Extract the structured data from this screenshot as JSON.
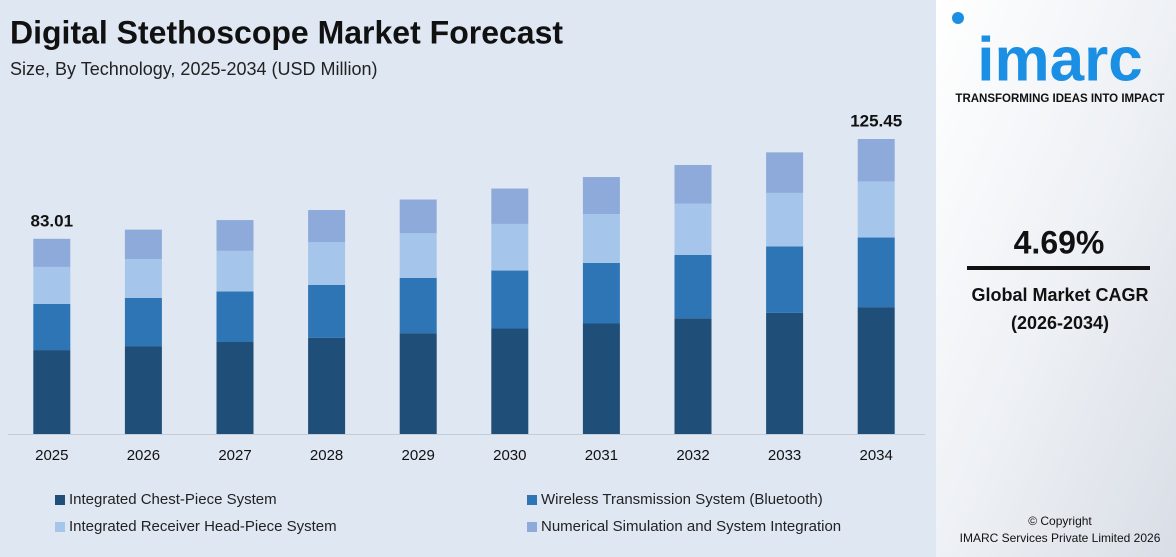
{
  "chart_data": {
    "type": "stacked-bar",
    "title": "Digital Stethoscope Market Forecast",
    "subtitle": "Size, By Technology, 2025-2034 (USD Million)",
    "categories": [
      "2025",
      "2026",
      "2027",
      "2028",
      "2029",
      "2030",
      "2031",
      "2032",
      "2033",
      "2034"
    ],
    "series": [
      {
        "name": "Integrated Chest-Piece System",
        "color": "#1f4e79",
        "values": [
          35.69,
          37.37,
          39.12,
          40.95,
          42.88,
          44.88,
          46.99,
          49.19,
          51.5,
          53.94
        ]
      },
      {
        "name": "Wireless Transmission System (Bluetooth)",
        "color": "#2e75b6",
        "values": [
          19.59,
          20.51,
          21.47,
          22.48,
          23.53,
          24.63,
          25.79,
          27.0,
          28.27,
          29.61
        ]
      },
      {
        "name": "Integrated Receiver Head-Piece System",
        "color": "#a5c6ea",
        "values": [
          15.77,
          16.51,
          17.29,
          18.1,
          18.94,
          19.83,
          20.76,
          21.74,
          22.76,
          23.84
        ]
      },
      {
        "name": "Numerical Simulation and System Integration",
        "color": "#8eaadb",
        "values": [
          11.96,
          12.51,
          13.1,
          13.71,
          14.36,
          15.04,
          15.74,
          16.47,
          17.24,
          18.06
        ]
      }
    ],
    "totals": [
      83.01,
      null,
      null,
      null,
      null,
      null,
      null,
      null,
      null,
      125.45
    ]
  },
  "sidebar": {
    "logo": "imarc",
    "tagline": "TRANSFORMING IDEAS INTO IMPACT",
    "cagr": "4.69%",
    "cagr_label": "Global Market CAGR",
    "cagr_period": "(2026-2034)",
    "copyright": "© Copyright",
    "company": "IMARC Services Private Limited 2026"
  }
}
